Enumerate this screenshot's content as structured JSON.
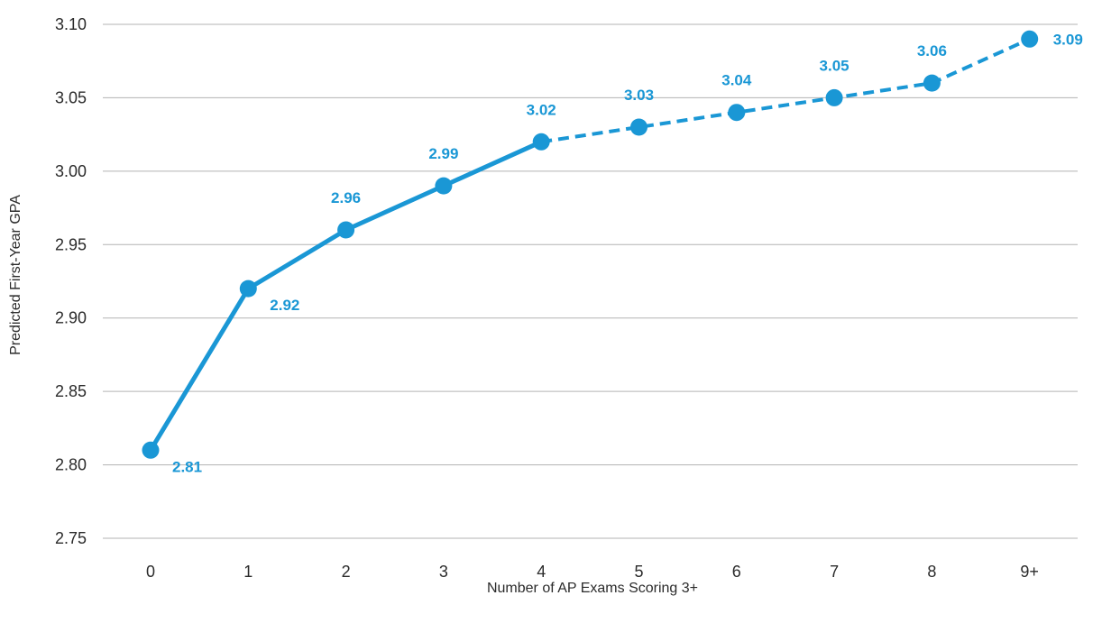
{
  "chart_data": {
    "type": "line",
    "xlabel": "Number of AP Exams Scoring 3+",
    "ylabel": "Predicted First-Year GPA",
    "categories": [
      "0",
      "1",
      "2",
      "3",
      "4",
      "5",
      "6",
      "7",
      "8",
      "9+"
    ],
    "values": [
      2.81,
      2.92,
      2.96,
      2.99,
      3.02,
      3.03,
      3.04,
      3.05,
      3.06,
      3.09
    ],
    "data_labels": [
      "2.81",
      "2.92",
      "2.96",
      "2.99",
      "3.02",
      "3.03",
      "3.04",
      "3.05",
      "3.06",
      "3.09"
    ],
    "line_style": {
      "solid_through_category": "4",
      "dashed_after": "4"
    },
    "ylim": [
      2.75,
      3.1
    ],
    "yticks": [
      "2.75",
      "2.80",
      "2.85",
      "2.90",
      "2.95",
      "3.00",
      "3.05",
      "3.10"
    ],
    "grid": "horizontal",
    "color": "#1a97d5"
  }
}
